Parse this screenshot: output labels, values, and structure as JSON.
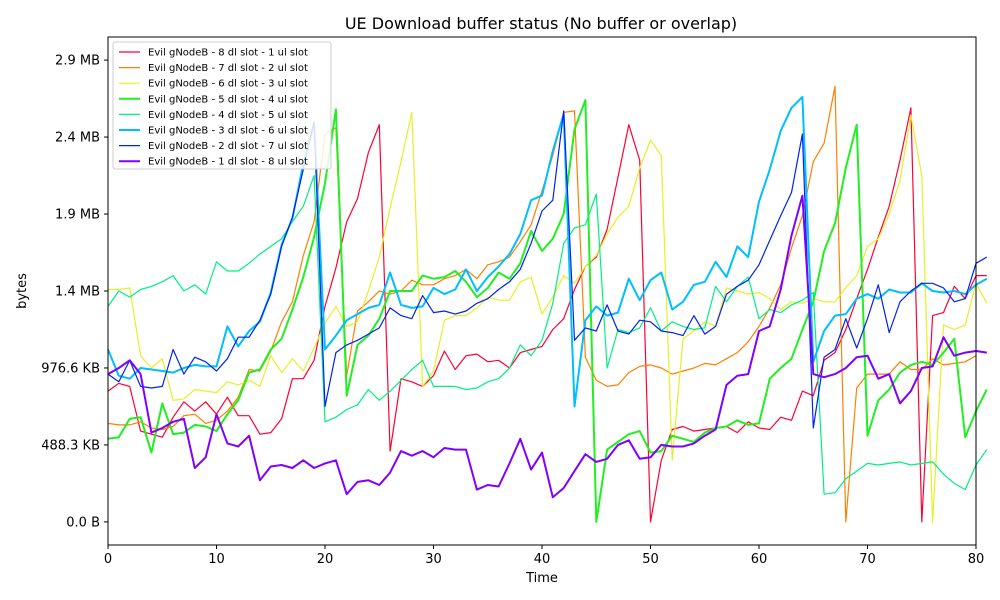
{
  "chart_data": {
    "type": "line",
    "title": "UE Download buffer status (No buffer or overlap)",
    "xlabel": "Time",
    "ylabel": "bytes",
    "xlim": [
      0,
      80
    ],
    "ylim": [
      -150000,
      3150000
    ],
    "grid": false,
    "legend_position": "top-left",
    "xticks": [
      0,
      10,
      20,
      30,
      40,
      50,
      60,
      70,
      80
    ],
    "xtick_labels": [
      "0",
      "10",
      "20",
      "30",
      "40",
      "50",
      "60",
      "70",
      "80"
    ],
    "yticks": [
      0,
      500000,
      1000000,
      1500000,
      2000000,
      2500000,
      3000000
    ],
    "ytick_labels": [
      "0.0 B",
      "488.3 KB",
      "976.6 KB",
      "1.4 MB",
      "1.9 MB",
      "2.4 MB",
      "2.9 MB"
    ],
    "series": [
      {
        "name": "Evil gNodeB - 8 dl slot - 1 ul slot",
        "color": "#ff0033",
        "values": [
          850000,
          900000,
          880000,
          590000,
          570000,
          550000,
          680000,
          780000,
          720000,
          780000,
          700000,
          810000,
          690000,
          690000,
          570000,
          580000,
          670000,
          930000,
          930000,
          1050000,
          1400000,
          1650000,
          1950000,
          2100000,
          2400000,
          2580000,
          460000,
          930000,
          910000,
          880000,
          950000,
          1110000,
          990000,
          1080000,
          1090000,
          1040000,
          1050000,
          1000000,
          1100000,
          1120000,
          1140000,
          1250000,
          1320000,
          1510000,
          1660000,
          1720000,
          1900000,
          2240000,
          2580000,
          2350000,
          0,
          400000,
          600000,
          620000,
          590000,
          600000,
          610000,
          620000,
          580000,
          650000,
          610000,
          600000,
          680000,
          660000,
          850000,
          820000,
          1050000,
          1100000,
          1250000,
          1450000,
          1640000,
          1850000,
          2050000,
          2350000,
          2690000,
          0,
          1340000,
          1360000,
          1530000,
          1450000,
          1600000,
          1600000
        ]
      },
      {
        "name": "Evil gNodeB - 7 dl slot - 2 ul slot",
        "color": "#ff7f00",
        "values": [
          640000,
          630000,
          630000,
          650000,
          610000,
          600000,
          620000,
          690000,
          700000,
          640000,
          660000,
          720000,
          810000,
          990000,
          980000,
          1110000,
          1300000,
          1430000,
          1730000,
          1950000,
          2520000,
          2560000,
          950000,
          1370000,
          1430000,
          1500000,
          1480000,
          1500000,
          1570000,
          1540000,
          1540000,
          1580000,
          1600000,
          1640000,
          1580000,
          1670000,
          1690000,
          1720000,
          1820000,
          1930000,
          2150000,
          2380000,
          2660000,
          2670000,
          1070000,
          920000,
          880000,
          890000,
          970000,
          1010000,
          1020000,
          1000000,
          960000,
          980000,
          1000000,
          1030000,
          1020000,
          1060000,
          1100000,
          1170000,
          1270000,
          1390000,
          1540000,
          1780000,
          1990000,
          2340000,
          2460000,
          2830000,
          0,
          870000,
          960000,
          960000,
          960000,
          1040000,
          990000,
          990000,
          1060000,
          1020000,
          1030000,
          1040000,
          1080000
        ]
      },
      {
        "name": "Evil gNodeB - 6 dl slot - 3 ul slot",
        "color": "#e5f026",
        "values": [
          1510000,
          1510000,
          1520000,
          1080000,
          1000000,
          1060000,
          790000,
          800000,
          860000,
          850000,
          840000,
          910000,
          890000,
          920000,
          880000,
          1080000,
          970000,
          1060000,
          980000,
          1130000,
          1290000,
          1400000,
          1270000,
          1300000,
          1500000,
          1720000,
          2040000,
          2340000,
          2660000,
          880000,
          980000,
          1310000,
          1340000,
          1340000,
          1390000,
          1460000,
          1440000,
          1440000,
          1560000,
          1590000,
          1350000,
          1460000,
          1600000,
          1550000,
          1660000,
          1730000,
          1870000,
          1980000,
          2050000,
          2300000,
          2480000,
          2380000,
          400000,
          1190000,
          1240000,
          1300000,
          1270000,
          1520000,
          1500000,
          1480000,
          1490000,
          1450000,
          1380000,
          1430000,
          1420000,
          1450000,
          1430000,
          1430000,
          1520000,
          1600000,
          1790000,
          1840000,
          2000000,
          2220000,
          2640000,
          2250000,
          0,
          1280000,
          1250000,
          1280000,
          1550000,
          1420000
        ]
      },
      {
        "name": "Evil gNodeB - 5 dl slot - 4 ul slot",
        "color": "#20f020",
        "values": [
          540000,
          550000,
          670000,
          680000,
          450000,
          770000,
          570000,
          580000,
          630000,
          620000,
          590000,
          700000,
          790000,
          970000,
          990000,
          1120000,
          1190000,
          1380000,
          1590000,
          1850000,
          2200000,
          2680000,
          820000,
          1150000,
          1210000,
          1320000,
          1500000,
          1500000,
          1500000,
          1600000,
          1580000,
          1590000,
          1630000,
          1560000,
          1460000,
          1520000,
          1620000,
          1580000,
          1680000,
          1890000,
          1760000,
          1840000,
          2000000,
          2550000,
          2740000,
          0,
          470000,
          520000,
          570000,
          590000,
          450000,
          460000,
          560000,
          540000,
          520000,
          580000,
          610000,
          620000,
          660000,
          630000,
          640000,
          930000,
          1000000,
          1060000,
          1250000,
          1430000,
          1760000,
          1940000,
          2300000,
          2580000,
          560000,
          790000,
          860000,
          970000,
          1020000,
          1040000,
          1020000,
          1100000,
          1190000,
          550000,
          720000,
          860000
        ]
      },
      {
        "name": "Evil gNodeB - 4 dl slot - 5 ul slot",
        "color": "#00f080",
        "values": [
          1400000,
          1500000,
          1460000,
          1510000,
          1530000,
          1560000,
          1600000,
          1500000,
          1540000,
          1480000,
          1690000,
          1630000,
          1630000,
          1680000,
          1740000,
          1790000,
          1840000,
          1950000,
          2050000,
          2250000,
          650000,
          680000,
          730000,
          760000,
          860000,
          790000,
          850000,
          920000,
          990000,
          1050000,
          880000,
          880000,
          880000,
          860000,
          870000,
          910000,
          930000,
          1000000,
          1150000,
          1080000,
          1180000,
          1420000,
          1810000,
          1910000,
          1930000,
          2130000,
          1000000,
          1250000,
          1230000,
          1260000,
          1390000,
          1240000,
          1300000,
          1270000,
          1250000,
          1260000,
          1530000,
          1430000,
          1530000,
          1590000,
          1320000,
          1380000,
          1360000,
          1410000,
          1440000,
          1490000,
          180000,
          190000,
          280000,
          330000,
          380000,
          370000,
          380000,
          390000,
          370000,
          380000,
          390000,
          310000,
          250000,
          210000,
          370000,
          470000
        ]
      },
      {
        "name": "Evil gNodeB - 3 dl slot - 6 ul slot",
        "color": "#00bfff",
        "values": [
          1120000,
          950000,
          930000,
          1000000,
          990000,
          980000,
          970000,
          1000000,
          1020000,
          1010000,
          1010000,
          1270000,
          1140000,
          1240000,
          1300000,
          1490000,
          1800000,
          1970000,
          2330000,
          2590000,
          1120000,
          1210000,
          1310000,
          1350000,
          1390000,
          1410000,
          1620000,
          1410000,
          1390000,
          1400000,
          1520000,
          1480000,
          1510000,
          1640000,
          1500000,
          1590000,
          1660000,
          1740000,
          1870000,
          2090000,
          2120000,
          2410000,
          2650000,
          750000,
          1310000,
          1400000,
          1340000,
          1360000,
          1580000,
          1440000,
          1570000,
          1620000,
          1380000,
          1430000,
          1540000,
          1560000,
          1690000,
          1590000,
          1790000,
          1720000,
          2080000,
          2290000,
          2540000,
          2690000,
          2760000,
          1040000,
          1240000,
          1340000,
          1350000,
          1450000,
          1480000,
          1450000,
          1510000,
          1490000,
          1490000,
          1550000,
          1500000,
          1490000,
          1500000,
          1480000,
          1540000,
          1580000
        ]
      },
      {
        "name": "Evil gNodeB - 2 dl slot - 7 ul slot",
        "color": "#0022ee",
        "values": [
          960000,
          910000,
          1050000,
          880000,
          870000,
          880000,
          1120000,
          960000,
          1070000,
          1040000,
          980000,
          1060000,
          1200000,
          1200000,
          1310000,
          1480000,
          1790000,
          1980000,
          2290000,
          2600000,
          750000,
          1100000,
          1150000,
          1180000,
          1220000,
          1260000,
          1390000,
          1340000,
          1320000,
          1470000,
          1360000,
          1370000,
          1350000,
          1370000,
          1420000,
          1450000,
          1510000,
          1560000,
          1640000,
          1810000,
          2020000,
          2090000,
          2670000,
          1180000,
          1260000,
          1240000,
          1410000,
          1240000,
          1220000,
          1310000,
          1300000,
          1240000,
          1230000,
          1210000,
          1340000,
          1220000,
          1270000,
          1480000,
          1530000,
          1570000,
          1670000,
          1830000,
          1990000,
          2140000,
          2520000,
          610000,
          1070000,
          1120000,
          1320000,
          1130000,
          1320000,
          1540000,
          1230000,
          1430000,
          1500000,
          1550000,
          1550000,
          1520000,
          1430000,
          1450000,
          1680000,
          1720000
        ]
      },
      {
        "name": "Evil gNodeB - 1 dl slot - 8 ul slot",
        "color": "#8000ff",
        "values": [
          960000,
          1000000,
          1050000,
          960000,
          580000,
          610000,
          650000,
          670000,
          350000,
          420000,
          700000,
          510000,
          490000,
          560000,
          270000,
          360000,
          370000,
          350000,
          400000,
          350000,
          380000,
          400000,
          180000,
          260000,
          270000,
          240000,
          320000,
          460000,
          430000,
          460000,
          420000,
          480000,
          470000,
          470000,
          210000,
          240000,
          230000,
          380000,
          540000,
          340000,
          450000,
          160000,
          220000,
          330000,
          440000,
          390000,
          410000,
          500000,
          530000,
          410000,
          420000,
          500000,
          490000,
          490000,
          510000,
          560000,
          600000,
          890000,
          950000,
          960000,
          1240000,
          1270000,
          1510000,
          1860000,
          2120000,
          960000,
          940000,
          960000,
          1000000,
          1070000,
          1080000,
          930000,
          960000,
          770000,
          850000,
          1000000,
          1010000,
          1200000,
          1080000,
          1100000,
          1110000,
          1100000
        ]
      }
    ]
  }
}
